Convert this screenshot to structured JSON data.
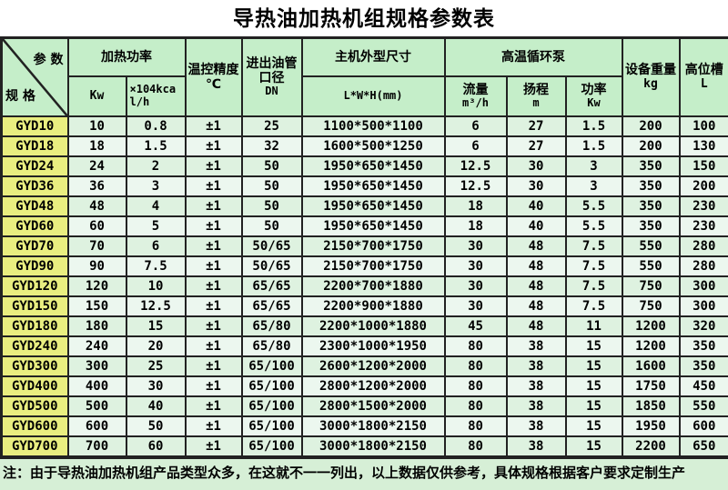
{
  "title": "导热油加热机组规格参数表",
  "corner": {
    "top": "参  数",
    "bottom": "规 格"
  },
  "columns": {
    "heating_power": {
      "label": "加热功率",
      "sub_kw": "Kw",
      "sub_kcal": "×104kcal/h"
    },
    "temp_control": {
      "label": "温控精度",
      "unit": "℃"
    },
    "pipe": {
      "line1": "进出油管",
      "line2": "口径",
      "line3": "DN"
    },
    "dimensions": {
      "label": "主机外型尺寸",
      "sub": "L*W*H(mm)"
    },
    "pump": {
      "label": "高温循环泵",
      "flow_label": "流量",
      "flow_unit": "m³/h",
      "lift_label": "扬程",
      "lift_unit": "m",
      "power_label": "功率",
      "power_unit": "Kw"
    },
    "weight": {
      "label": "设备重量",
      "unit": "kg"
    },
    "tank": {
      "label": "高位槽",
      "unit": "L"
    }
  },
  "table": {
    "rows": [
      [
        "GYD10",
        "10",
        "0.8",
        "±1",
        "25",
        "1100*500*1100",
        "6",
        "27",
        "1.5",
        "200",
        "100"
      ],
      [
        "GYD18",
        "18",
        "1.5",
        "±1",
        "32",
        "1600*500*1250",
        "6",
        "27",
        "1.5",
        "200",
        "130"
      ],
      [
        "GYD24",
        "24",
        "2",
        "±1",
        "50",
        "1950*650*1450",
        "12.5",
        "30",
        "3",
        "350",
        "150"
      ],
      [
        "GYD36",
        "36",
        "3",
        "±1",
        "50",
        "1950*650*1450",
        "12.5",
        "30",
        "3",
        "350",
        "200"
      ],
      [
        "GYD48",
        "48",
        "4",
        "±1",
        "50",
        "1950*650*1450",
        "18",
        "40",
        "5.5",
        "350",
        "230"
      ],
      [
        "GYD60",
        "60",
        "5",
        "±1",
        "50",
        "1950*650*1450",
        "18",
        "40",
        "5.5",
        "350",
        "230"
      ],
      [
        "GYD70",
        "70",
        "6",
        "±1",
        "50/65",
        "2150*700*1750",
        "30",
        "48",
        "7.5",
        "550",
        "280"
      ],
      [
        "GYD90",
        "90",
        "7.5",
        "±1",
        "50/65",
        "2150*700*1750",
        "30",
        "48",
        "7.5",
        "550",
        "280"
      ],
      [
        "GYD120",
        "120",
        "10",
        "±1",
        "65/65",
        "2200*700*1880",
        "30",
        "48",
        "7.5",
        "750",
        "300"
      ],
      [
        "GYD150",
        "150",
        "12.5",
        "±1",
        "65/65",
        "2200*900*1880",
        "30",
        "48",
        "7.5",
        "750",
        "300"
      ],
      [
        "GYD180",
        "180",
        "15",
        "±1",
        "65/80",
        "2200*1000*1880",
        "45",
        "48",
        "11",
        "1200",
        "320"
      ],
      [
        "GYD240",
        "240",
        "20",
        "±1",
        "65/80",
        "2300*1000*1950",
        "80",
        "38",
        "15",
        "1200",
        "350"
      ],
      [
        "GYD300",
        "300",
        "25",
        "±1",
        "65/100",
        "2600*1200*2000",
        "80",
        "38",
        "15",
        "1600",
        "350"
      ],
      [
        "GYD400",
        "400",
        "30",
        "±1",
        "65/100",
        "2800*1200*2000",
        "80",
        "38",
        "15",
        "1750",
        "450"
      ],
      [
        "GYD500",
        "500",
        "40",
        "±1",
        "65/100",
        "2800*1500*2000",
        "80",
        "38",
        "15",
        "1850",
        "550"
      ],
      [
        "GYD600",
        "600",
        "50",
        "±1",
        "65/100",
        "3000*1800*2150",
        "80",
        "38",
        "15",
        "1950",
        "600"
      ],
      [
        "GYD700",
        "700",
        "60",
        "±1",
        "65/100",
        "3000*1800*2150",
        "80",
        "38",
        "15",
        "2200",
        "650"
      ]
    ]
  },
  "note": "注：由于导热油加热机组产品类型众多，在这就不一一列出，以上数据仅供参考，具体规格根据客户要求定制生产",
  "colors": {
    "header_bg": "#c5eec9",
    "model_col_bg": "#e9ee80",
    "row_odd_bg": "#def2e0",
    "row_even_bg": "#ecf7ef",
    "note_bg": "#d6efd6",
    "border": "#222222"
  }
}
